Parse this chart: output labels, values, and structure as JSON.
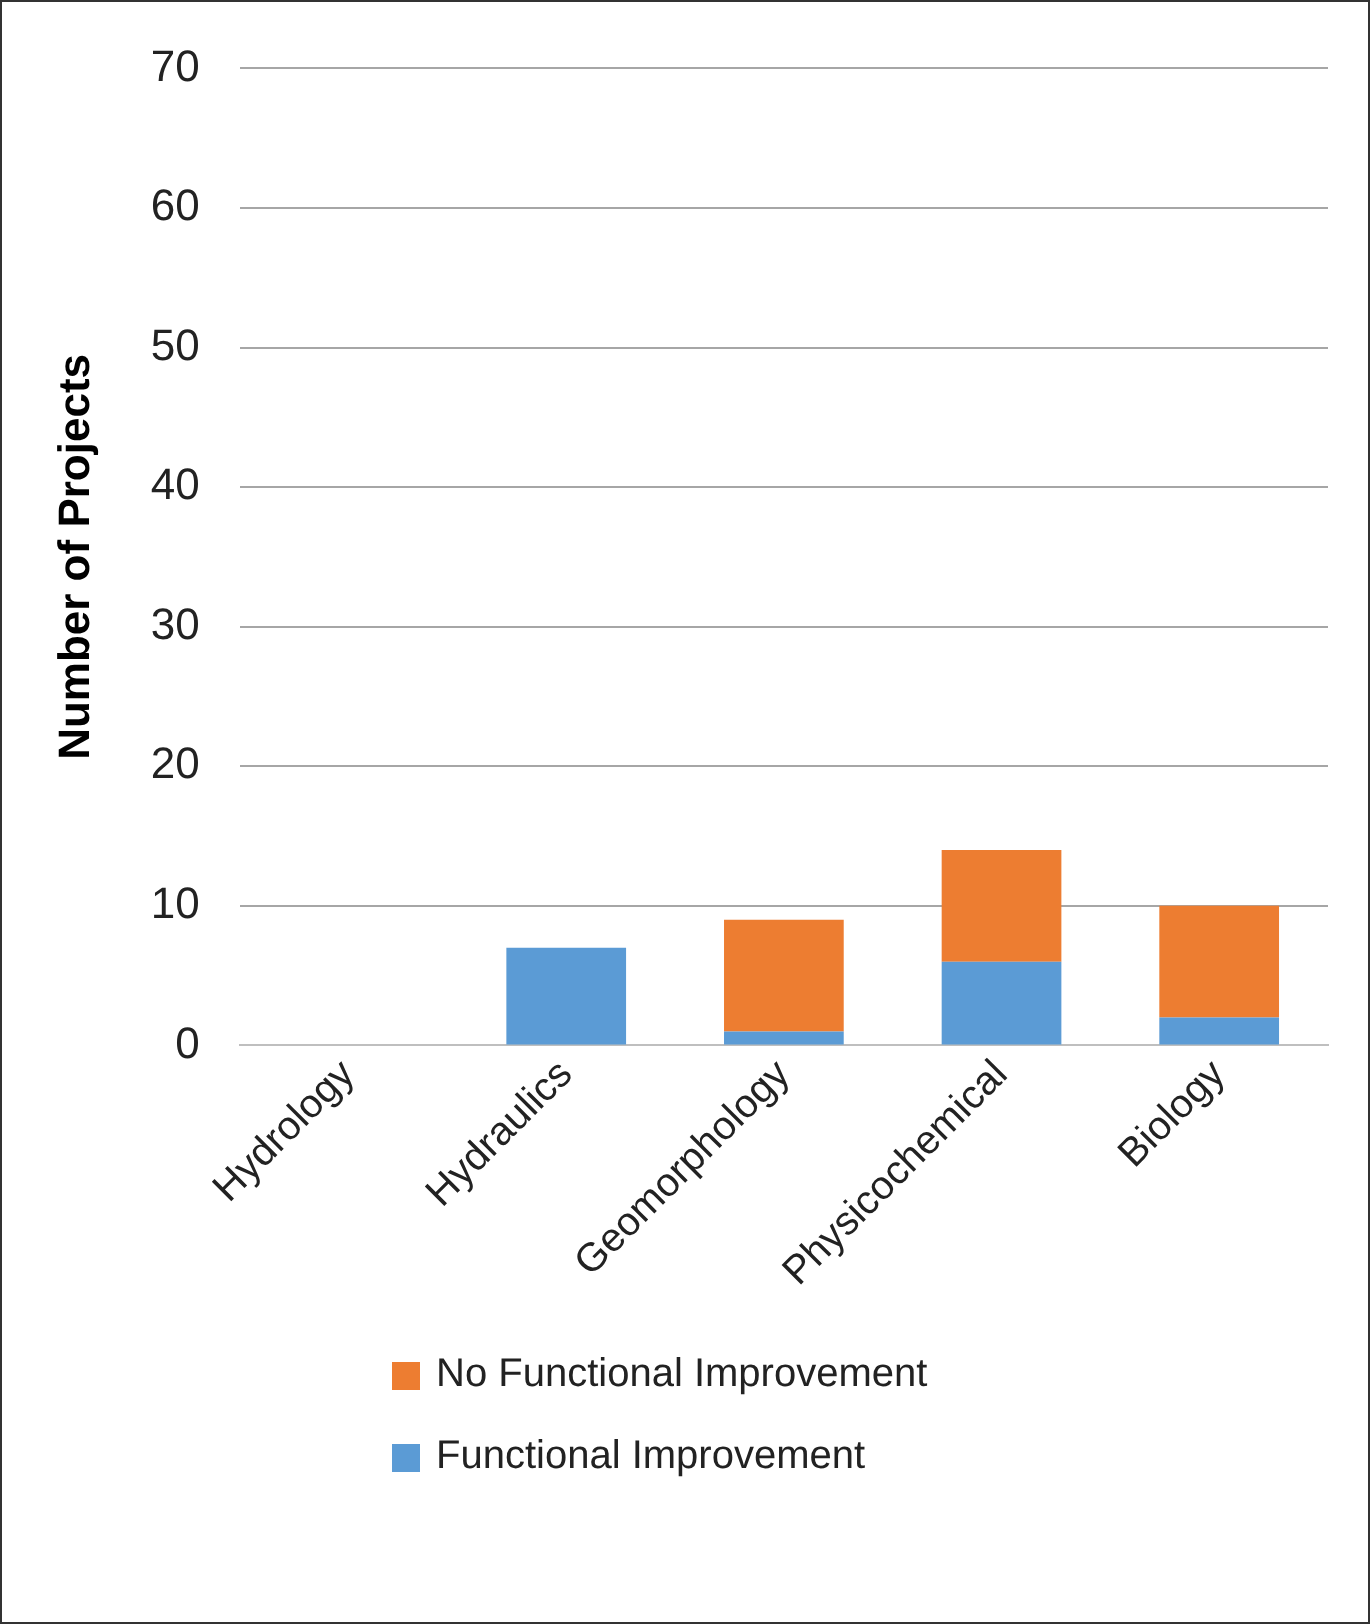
{
  "chart_data": {
    "type": "bar",
    "stacked": true,
    "ylabel": "Number of Projects",
    "categories": [
      "Hydrology",
      "Hydraulics",
      "Geomorphology",
      "Physicochemical",
      "Biology"
    ],
    "series": [
      {
        "name": "Functional Improvement",
        "color": "#5b9bd5",
        "values": [
          0,
          7,
          1,
          6,
          2
        ]
      },
      {
        "name": "No Functional Improvement",
        "color": "#ed7d31",
        "values": [
          0,
          0,
          8,
          8,
          8
        ]
      }
    ],
    "ylim": [
      0,
      70
    ],
    "yticks": [
      0,
      10,
      20,
      30,
      40,
      50,
      60,
      70
    ],
    "grid": "y",
    "legend": "bottom"
  }
}
